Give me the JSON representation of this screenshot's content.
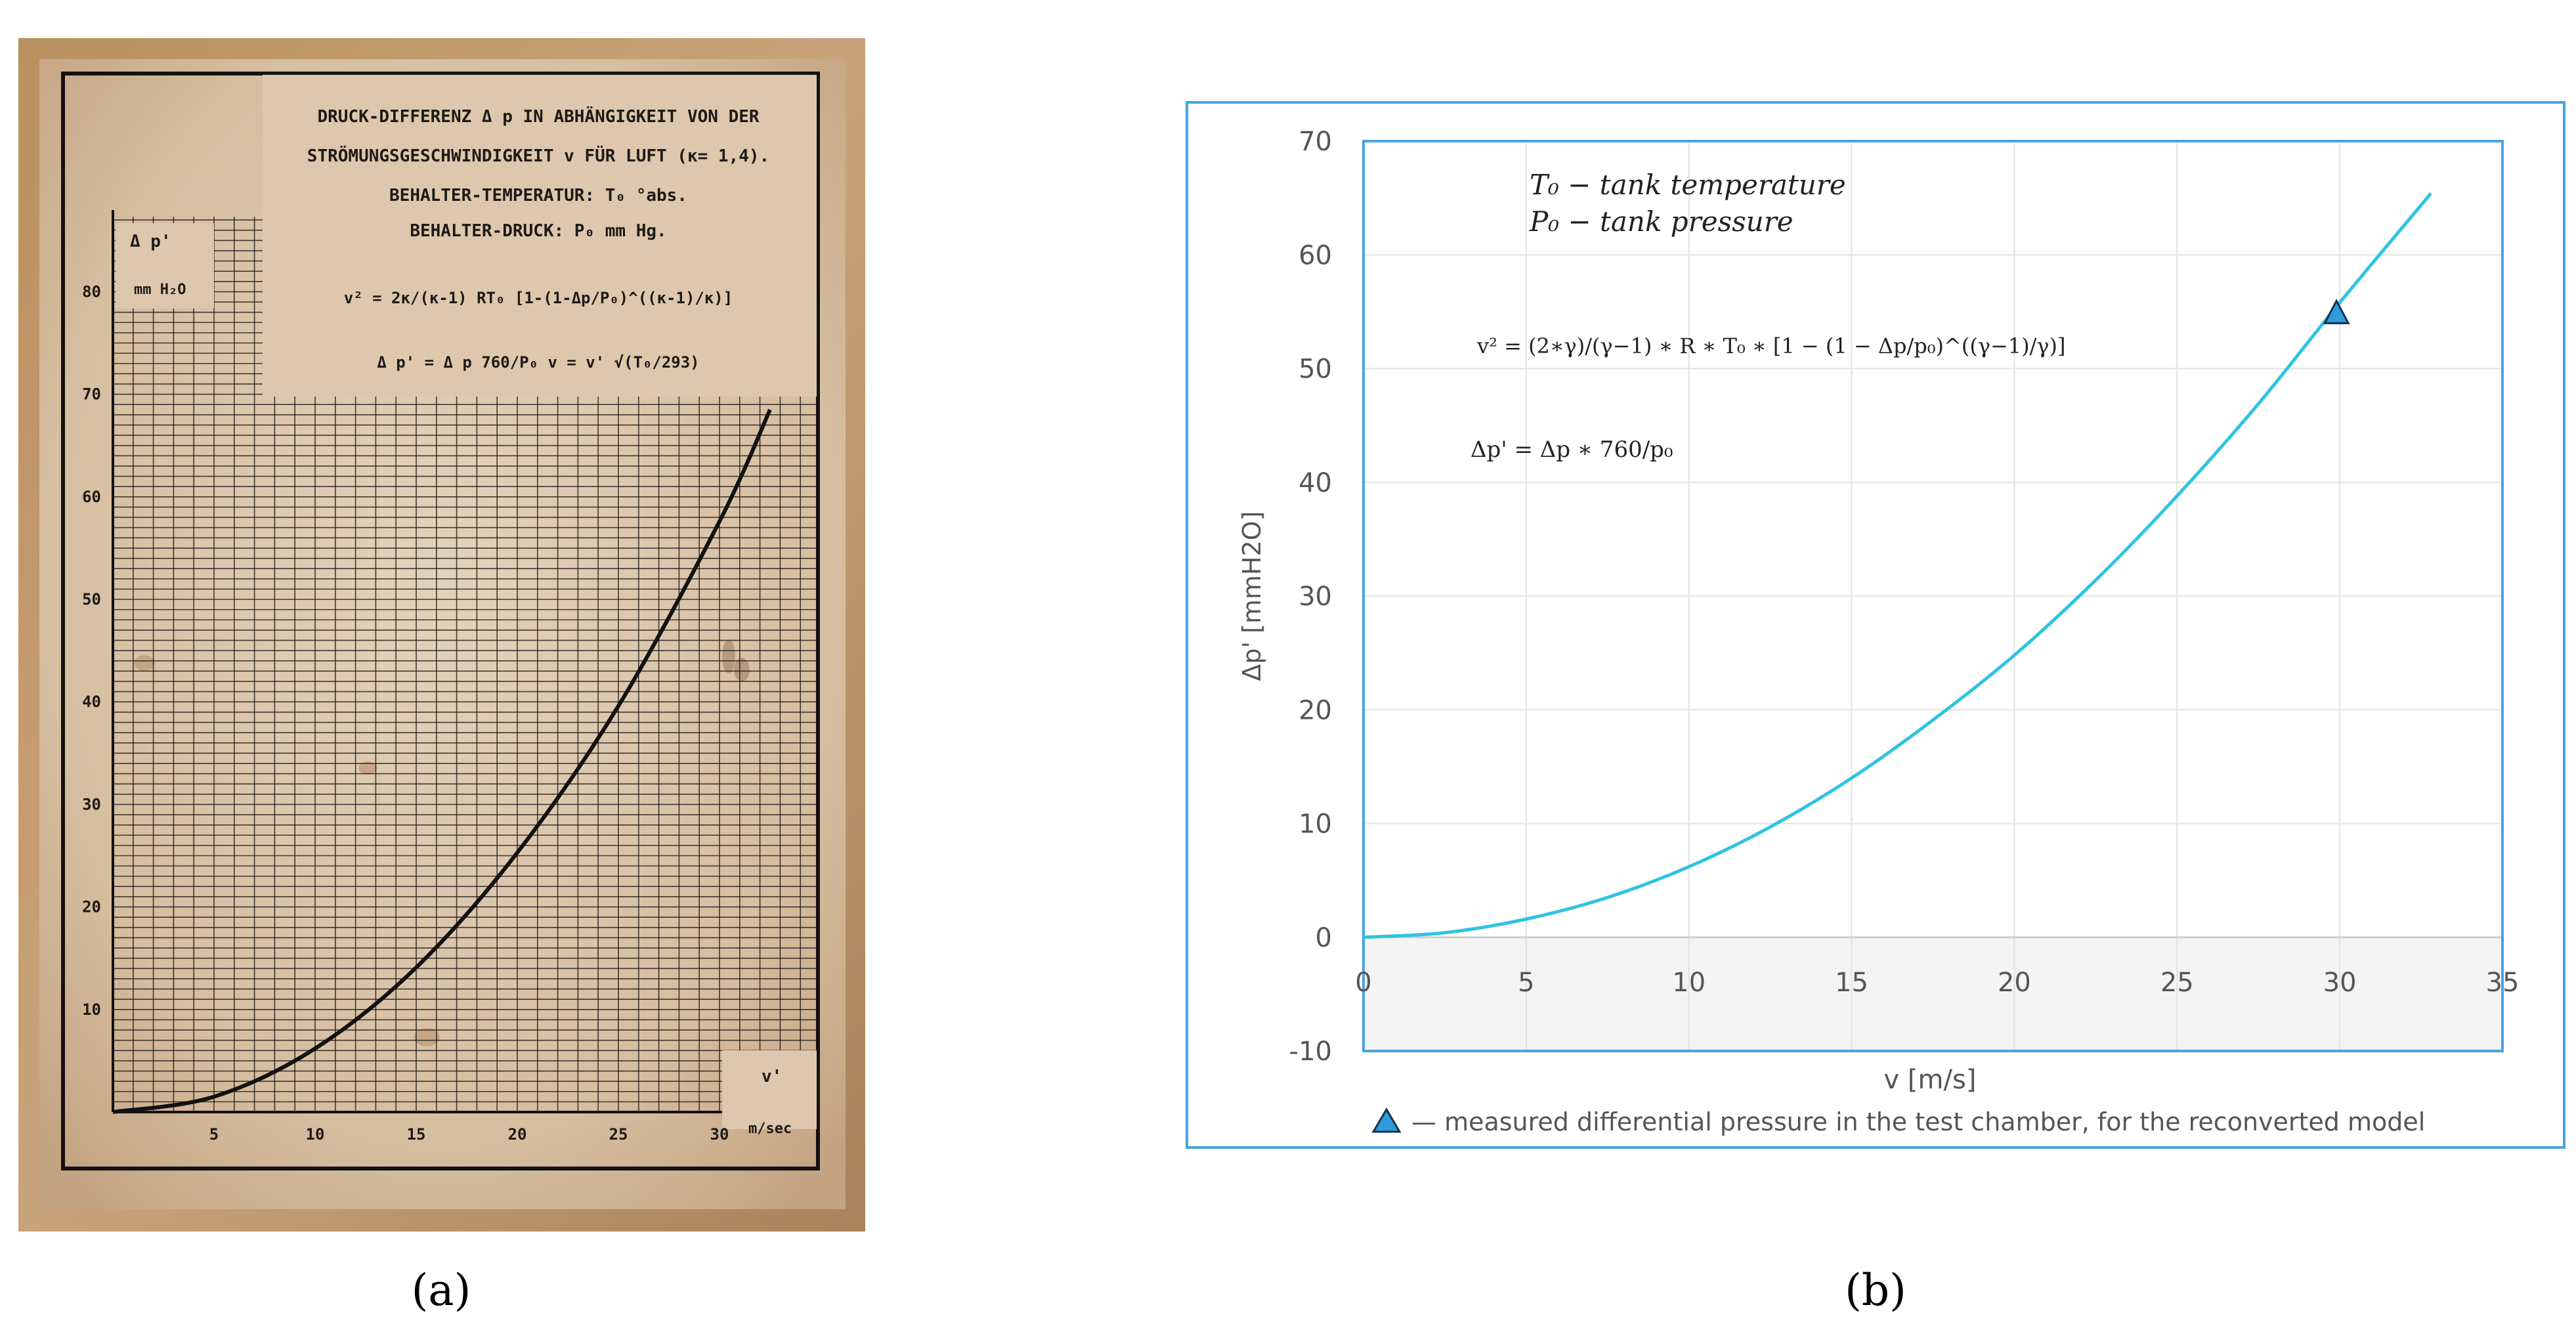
{
  "panel_a": {
    "caption": "(a)",
    "title_lines": [
      "DRUCK-DIFFERENZ Δ p IN ABHÄNGIGKEIT VON DER",
      "STRÖMUNGSGESCHWINDIGKEIT v FÜR LUFT (κ= 1,4).",
      "BEHALTER-TEMPERATUR: T₀ °abs.",
      "BEHALTER-DRUCK: P₀ mm Hg."
    ],
    "formula_1": "v² = 2κ/(κ-1) RT₀ [1-(1-Δp/P₀)^((κ-1)/κ)]",
    "formula_2": "Δ p' = Δ p 760/P₀     v = v' √(T₀/293)",
    "y_axis_label": "Δ p'",
    "y_unit": "mm H₂O",
    "x_axis_label": "v'",
    "x_unit": "m/sec"
  },
  "panel_b": {
    "caption": "(b)",
    "legend_text": "— measured differential pressure in the test chamber, for the reconverted model",
    "definitions": [
      "T₀ − tank temperature",
      "P₀ − tank pressure"
    ],
    "formula_1": "v² = (2∗γ)/(γ−1) ∗ R ∗ T₀ ∗ [1 − (1 − Δp/p₀)^((γ−1)/γ)]",
    "formula_2": "Δp' = Δp ∗ 760/p₀"
  },
  "colors": {
    "frame_b": "#4aa3df",
    "curve_b": "#2ec4e0",
    "marker_b": "#2f9bdc",
    "paper": "#d8c2a6",
    "curve_a": "#111111"
  },
  "chart_data": [
    {
      "type": "line",
      "title": "DRUCK-DIFFERENZ Δ p IN ABHÄNGIGKEIT VON DER STRÖMUNGSGESCHWINDIGKEIT v FÜR LUFT (κ= 1,4).",
      "xlabel": "v' m/sec",
      "ylabel": "Δ p' mm H₂O",
      "xlim": [
        0,
        33
      ],
      "ylim": [
        0,
        85
      ],
      "xticks": [
        5,
        10,
        15,
        20,
        25,
        30
      ],
      "yticks": [
        10,
        20,
        30,
        40,
        50,
        60,
        70,
        80
      ],
      "grid": true,
      "series": [
        {
          "x": [
            0,
            5,
            10,
            15,
            20,
            25,
            30,
            32.5
          ],
          "y": [
            0,
            1.5,
            6.2,
            14.1,
            25.3,
            39.6,
            57.6,
            68.5
          ]
        }
      ]
    },
    {
      "type": "line",
      "xlabel": "v [m/s]",
      "ylabel": "Δp' [mmH2O]",
      "xlim": [
        0,
        35
      ],
      "ylim": [
        -10,
        70
      ],
      "xticks": [
        0,
        5,
        10,
        15,
        20,
        25,
        30,
        35
      ],
      "yticks": [
        -10,
        0,
        10,
        20,
        30,
        40,
        50,
        60,
        70
      ],
      "grid": true,
      "legend": "bottom",
      "series": [
        {
          "x": [
            0,
            2.5,
            5,
            7.5,
            10,
            12.5,
            15,
            17.5,
            20,
            22.5,
            25,
            27.5,
            30,
            32.8
          ],
          "y": [
            0,
            0.4,
            1.6,
            3.5,
            6.2,
            9.7,
            14.0,
            19.1,
            24.8,
            31.4,
            38.8,
            46.9,
            55.8,
            65.4
          ]
        },
        {
          "type": "scatter",
          "marker": "triangle",
          "x": [
            29.9
          ],
          "y": [
            54.8
          ]
        }
      ]
    }
  ]
}
